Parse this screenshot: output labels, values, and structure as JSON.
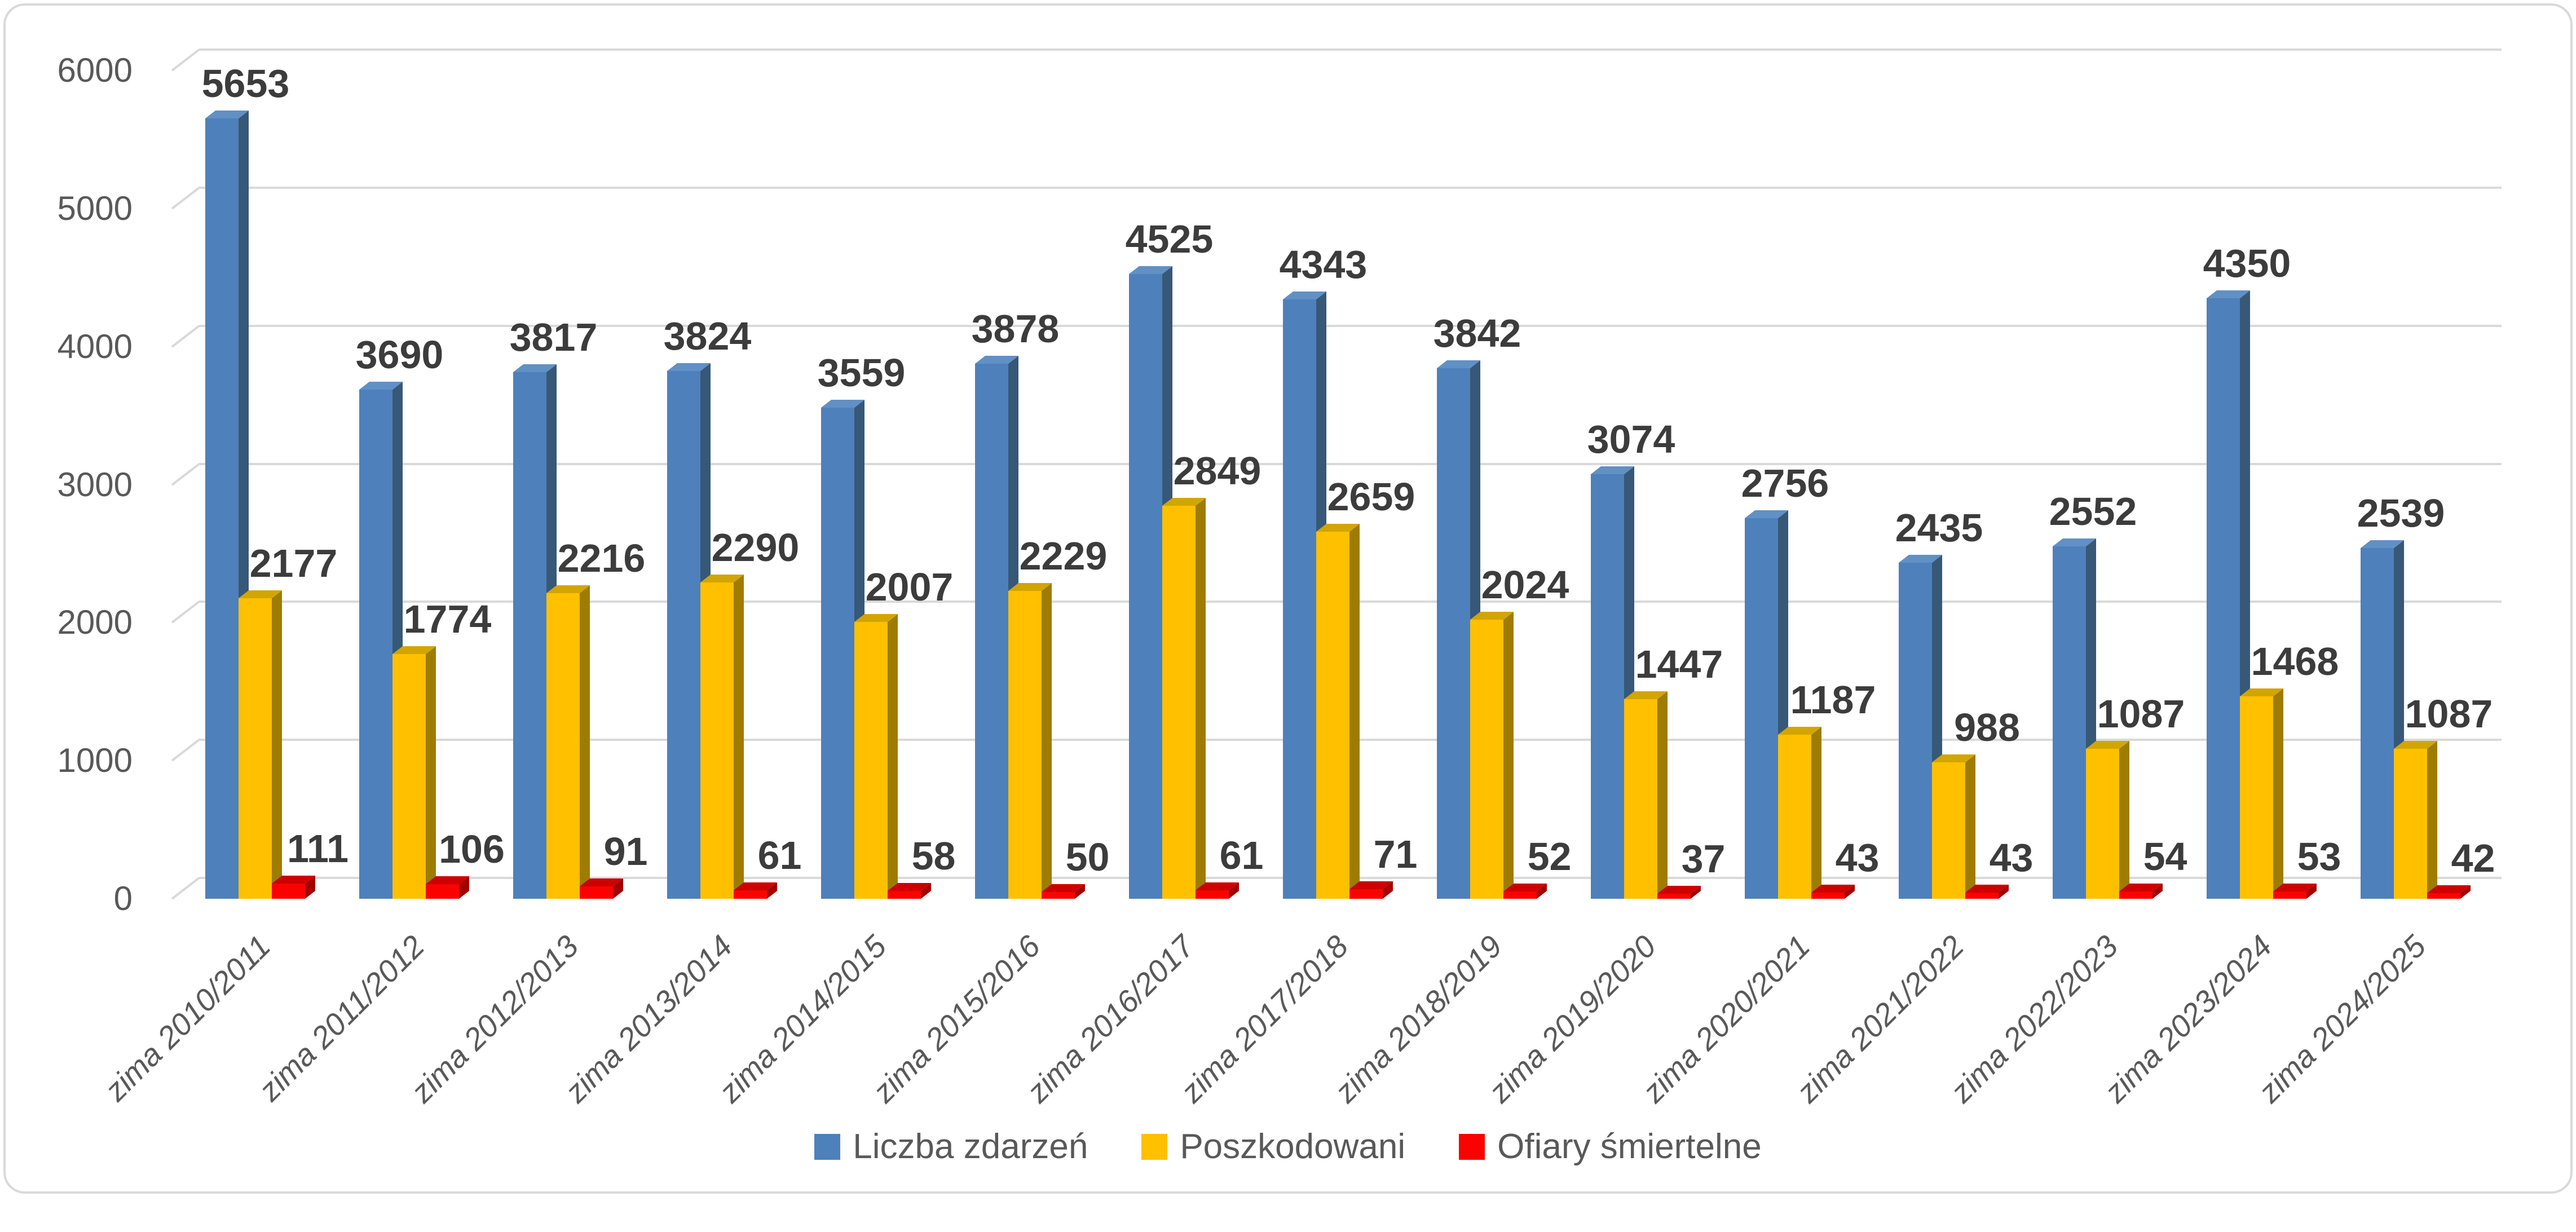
{
  "chart_data": {
    "type": "bar",
    "subtype": "3d-clustered-column",
    "title": "",
    "xlabel": "",
    "ylabel": "",
    "ylim": [
      0,
      6000
    ],
    "ytick_step": 1000,
    "yticks": [
      "0",
      "1000",
      "2000",
      "3000",
      "4000",
      "5000",
      "6000"
    ],
    "grid": true,
    "legend_position": "bottom",
    "categories": [
      "zima 2010/2011",
      "zima 2011/2012",
      "zima 2012/2013",
      "zima 2013/2014",
      "zima 2014/2015",
      "zima 2015/2016",
      "zima 2016/2017",
      "zima 2017/2018",
      "zima 2018/2019",
      "zima 2019/2020",
      "zima 2020/2021",
      "zima 2021/2022",
      "zima 2022/2023",
      "zima 2023/2024",
      "zima 2024/2025"
    ],
    "series": [
      {
        "name": "Liczba zdarzeń",
        "color": "#4E80BC",
        "color_top": "#6190C5",
        "color_side": "#375877",
        "values": [
          5653,
          3690,
          3817,
          3824,
          3559,
          3878,
          4525,
          4343,
          3842,
          3074,
          2756,
          2435,
          2552,
          4350,
          2539
        ]
      },
      {
        "name": "Poszkodowani",
        "color": "#FFC000",
        "color_top": "#D2A500",
        "color_side": "#9E7C00",
        "values": [
          2177,
          1774,
          2216,
          2290,
          2007,
          2229,
          2849,
          2659,
          2024,
          1447,
          1187,
          988,
          1087,
          1468,
          1087
        ]
      },
      {
        "name": "Ofiary śmiertelne",
        "color": "#FB0200",
        "color_top": "#CD0101",
        "color_side": "#A30000",
        "values": [
          111,
          106,
          91,
          61,
          58,
          50,
          61,
          71,
          52,
          37,
          43,
          43,
          54,
          53,
          42
        ]
      }
    ]
  },
  "palette": {
    "gridline": "#D9D9D9",
    "frame_border": "#D9D9D9",
    "background": "#FFFFFF",
    "tick_text": "#595959",
    "category_text": "#595959",
    "data_label_text": "#3C3C3C",
    "legend_text": "#595959"
  }
}
